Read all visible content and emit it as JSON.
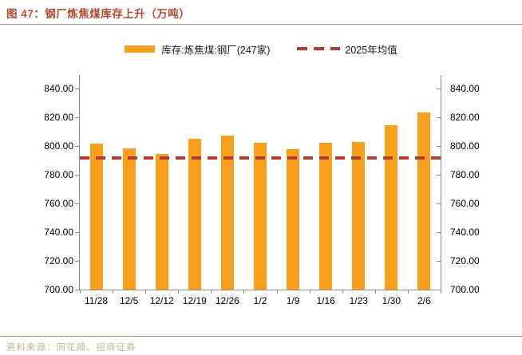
{
  "header": {
    "title": "图 47：钢厂炼焦煤库存上升（万吨）"
  },
  "legend": {
    "bar_label": "库存:炼焦煤:钢厂(247家)",
    "line_label": "2025年均值"
  },
  "footer": {
    "source": "资料来源：同花顺、招商证券"
  },
  "colors": {
    "bar": "#F8A01D",
    "mean_line": "#AF3B32",
    "title_text": "#B14A31",
    "title_rule": "#BC9579",
    "axis": "#8C8C8C",
    "source_text": "#C4B593"
  },
  "chart_data": {
    "type": "bar",
    "title": "图 47：钢厂炼焦煤库存上升（万吨）",
    "categories": [
      "11/28",
      "12/5",
      "12/12",
      "12/19",
      "12/26",
      "1/2",
      "1/9",
      "1/16",
      "1/23",
      "1/30",
      "2/6"
    ],
    "series": [
      {
        "name": "库存:炼焦煤:钢厂(247家)",
        "type": "bar",
        "color": "#F8A01D",
        "values": [
          801.5,
          798.5,
          794.5,
          805.0,
          807.0,
          802.0,
          798.0,
          802.0,
          803.0,
          814.5,
          823.5
        ]
      },
      {
        "name": "2025年均值",
        "type": "dashed_mean_line",
        "color": "#AF3B32",
        "value": 791.5
      }
    ],
    "xlabel": "",
    "ylabel": "",
    "ylim": [
      700,
      840
    ],
    "ytick_step": 20,
    "ytick_decimals": 2,
    "dual_axis": true,
    "grid": false,
    "legend_position": "top"
  }
}
